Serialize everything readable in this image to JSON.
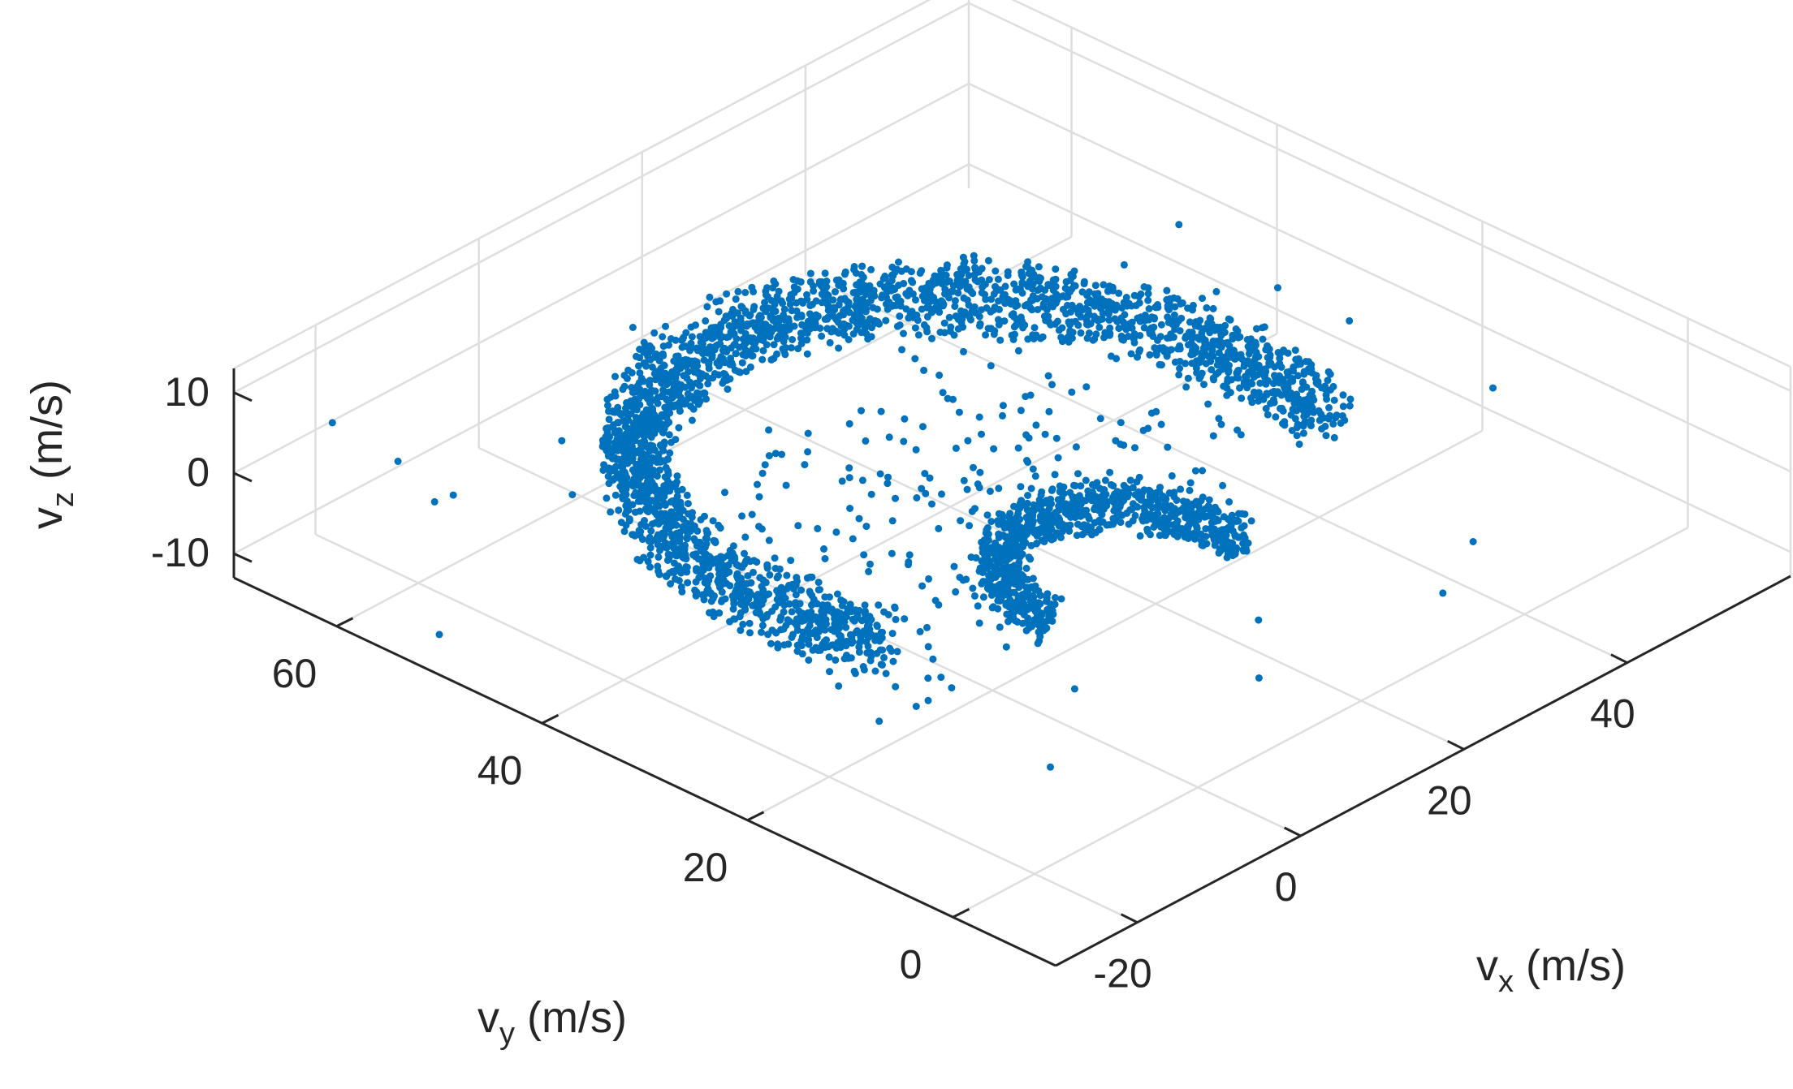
{
  "chart_data": {
    "type": "scatter",
    "projection": "3d",
    "title": "",
    "color": "#0072BD",
    "grid": true,
    "axes": {
      "x": {
        "label": "v",
        "subscript": "x",
        "unit": "(m/s)",
        "lim": [
          -30,
          60
        ],
        "ticks": [
          -20,
          0,
          20,
          40
        ],
        "tick_labels": [
          "-20",
          "0",
          "20",
          "40"
        ]
      },
      "y": {
        "label": "v",
        "subscript": "y",
        "unit": "(m/s)",
        "lim": [
          -10,
          70
        ],
        "ticks": [
          0,
          20,
          40,
          60
        ],
        "tick_labels": [
          "0",
          "20",
          "40",
          "60"
        ]
      },
      "z": {
        "label": "v",
        "subscript": "z",
        "unit": "(m/s)",
        "lim": [
          -13,
          13
        ],
        "ticks": [
          -10,
          0,
          10
        ],
        "tick_labels": [
          "-10",
          "0",
          "10"
        ]
      }
    },
    "series": [
      {
        "description": "dense outer arc and inner arc of velocity samples",
        "outer_arc": {
          "center": [
            12,
            28
          ],
          "radius_range": [
            26,
            31
          ],
          "angle_range_deg": [
            -20,
            200
          ],
          "vz_range": [
            -2,
            5
          ]
        },
        "inner_arc": {
          "center": [
            10,
            14
          ],
          "radius_range": [
            9,
            12
          ],
          "angle_range_deg": [
            -10,
            180
          ],
          "vz_range": [
            -3,
            2
          ]
        },
        "outliers": [
          [
            -22,
            55,
            2
          ],
          [
            -18,
            60,
            -4
          ],
          [
            -25,
            58,
            6
          ],
          [
            -15,
            50,
            8
          ],
          [
            -10,
            48,
            9
          ],
          [
            -20,
            45,
            7
          ],
          [
            -5,
            50,
            10
          ],
          [
            0,
            55,
            11
          ],
          [
            5,
            48,
            9
          ],
          [
            15,
            50,
            10
          ],
          [
            30,
            40,
            11
          ],
          [
            35,
            35,
            12
          ],
          [
            40,
            30,
            9
          ],
          [
            45,
            28,
            8
          ],
          [
            -28,
            62,
            10
          ],
          [
            -30,
            50,
            -8
          ],
          [
            -12,
            30,
            -6
          ],
          [
            -5,
            20,
            -10
          ],
          [
            20,
            10,
            -9
          ],
          [
            40,
            5,
            -7
          ],
          [
            30,
            0,
            -5
          ],
          [
            -8,
            8,
            -11
          ],
          [
            0,
            12,
            -8
          ],
          [
            10,
            2,
            -6
          ],
          [
            25,
            20,
            13
          ],
          [
            50,
            25,
            3
          ],
          [
            55,
            15,
            -2
          ],
          [
            -2,
            25,
            12
          ],
          [
            8,
            45,
            12
          ],
          [
            48,
            40,
            7
          ]
        ]
      }
    ]
  }
}
